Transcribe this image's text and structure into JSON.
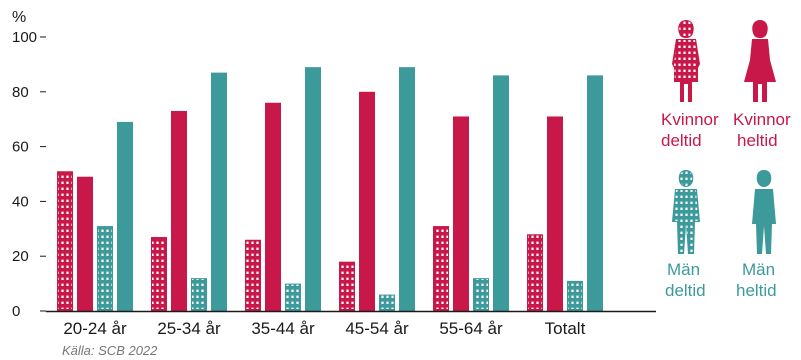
{
  "chart_data": {
    "type": "bar",
    "unit_label": "%",
    "ylim": [
      0,
      100
    ],
    "yticks": [
      0,
      20,
      40,
      60,
      80,
      100
    ],
    "grid": false,
    "legend_position": "right",
    "categories": [
      "20-24 år",
      "25-34 år",
      "35-44 år",
      "45-54 år",
      "55-64 år",
      "Totalt"
    ],
    "series": [
      {
        "name": "Kvinnor deltid",
        "name_lines": [
          "Kvinnor",
          "deltid"
        ],
        "pattern": "dotted",
        "color": "#c8184a",
        "values": [
          51,
          27,
          26,
          18,
          31,
          28
        ]
      },
      {
        "name": "Kvinnor heltid",
        "name_lines": [
          "Kvinnor",
          "heltid"
        ],
        "pattern": "solid",
        "color": "#c8184a",
        "values": [
          49,
          73,
          76,
          80,
          71,
          71
        ]
      },
      {
        "name": "Män deltid",
        "name_lines": [
          "Män",
          "deltid"
        ],
        "pattern": "dotted",
        "color": "#3d9a9b",
        "values": [
          31,
          12,
          10,
          6,
          12,
          11
        ]
      },
      {
        "name": "Män heltid",
        "name_lines": [
          "Män",
          "heltid"
        ],
        "pattern": "solid",
        "color": "#3d9a9b",
        "values": [
          69,
          87,
          89,
          89,
          86,
          86
        ]
      }
    ],
    "source": "Källa: SCB 2022"
  }
}
